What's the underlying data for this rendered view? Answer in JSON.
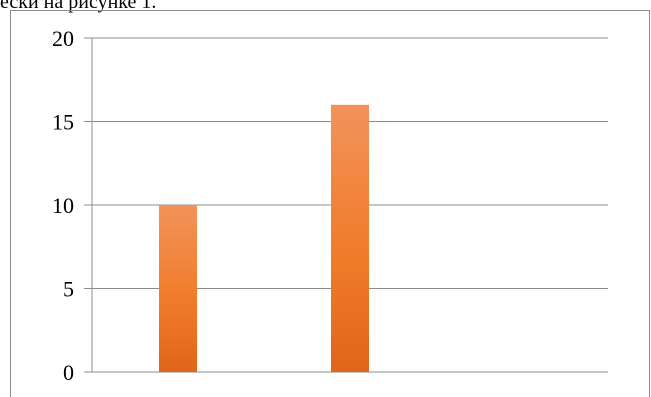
{
  "page": {
    "top_text": "ески на рисунке 1."
  },
  "chart_data": {
    "type": "bar",
    "categories": [
      "",
      "",
      ""
    ],
    "values": [
      10,
      16,
      0
    ],
    "ylim": [
      0,
      20
    ],
    "yticks": [
      0,
      5,
      10,
      15,
      20
    ],
    "grid": true,
    "legend": "none",
    "colors": {
      "bar_top": "#f2935a",
      "bar_mid": "#f07c2a",
      "bar_bottom": "#e0661a",
      "grid": "#8c8c8c"
    }
  }
}
